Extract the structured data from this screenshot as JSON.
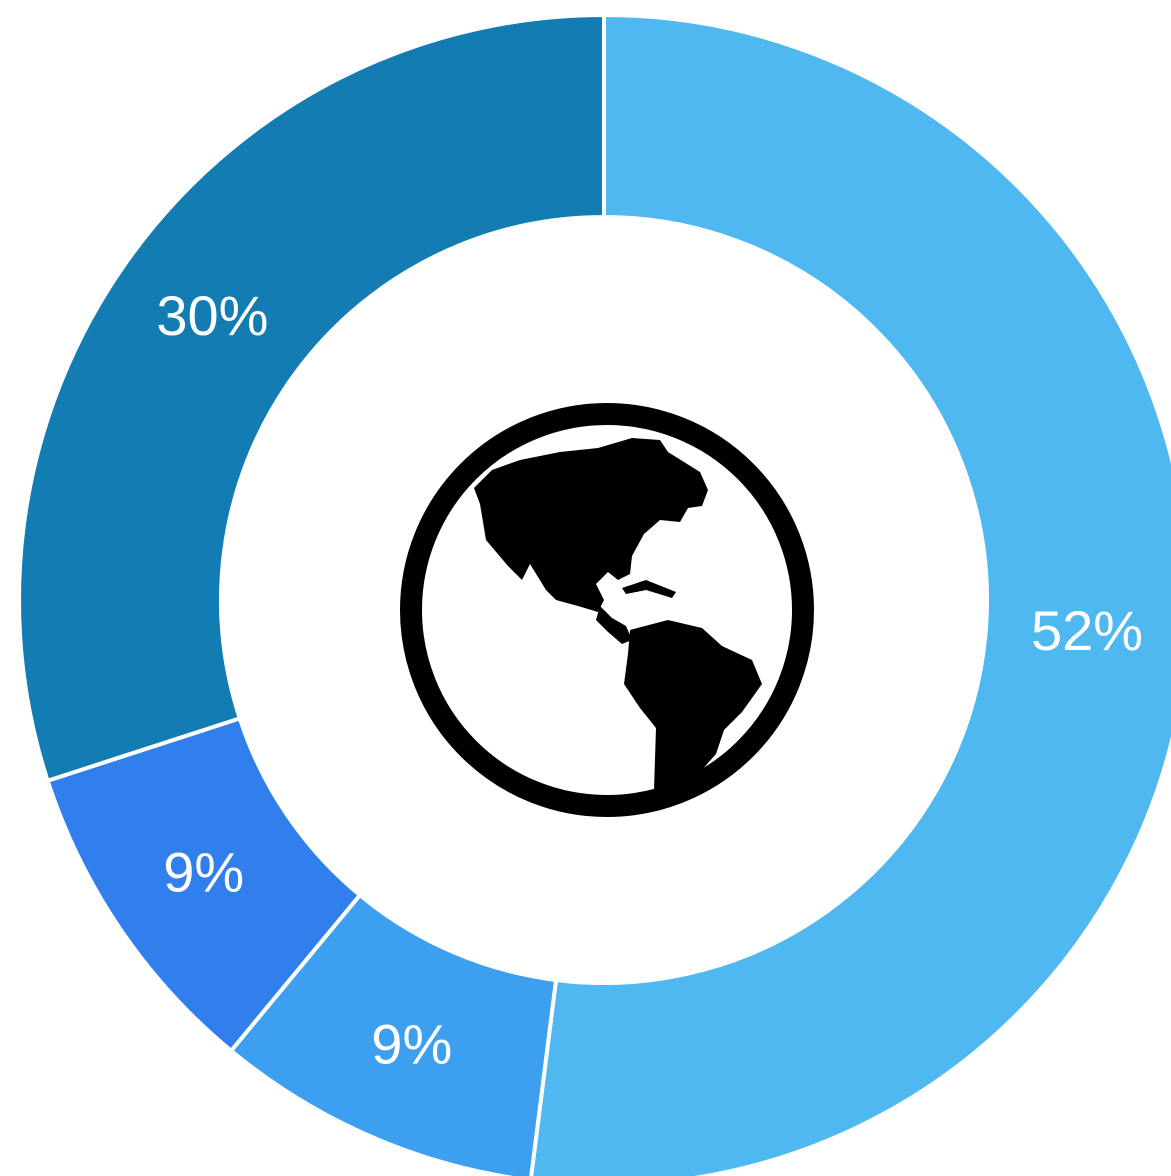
{
  "chart_data": {
    "type": "pie",
    "variant": "donut",
    "categories": [
      "",
      "",
      "",
      ""
    ],
    "values": [
      52,
      9,
      9,
      30
    ],
    "labels": [
      "52%",
      "9%",
      "9%",
      "30%"
    ],
    "colors": [
      "#50b8f0",
      "#3d9ff0",
      "#317fec",
      "#127cb3"
    ],
    "separator_color": "#ffffff",
    "start_angle_deg": 0,
    "direction": "clockwise",
    "title": "",
    "legend": "none"
  },
  "center_icon": {
    "name": "globe-americas-icon",
    "color": "#000000"
  }
}
